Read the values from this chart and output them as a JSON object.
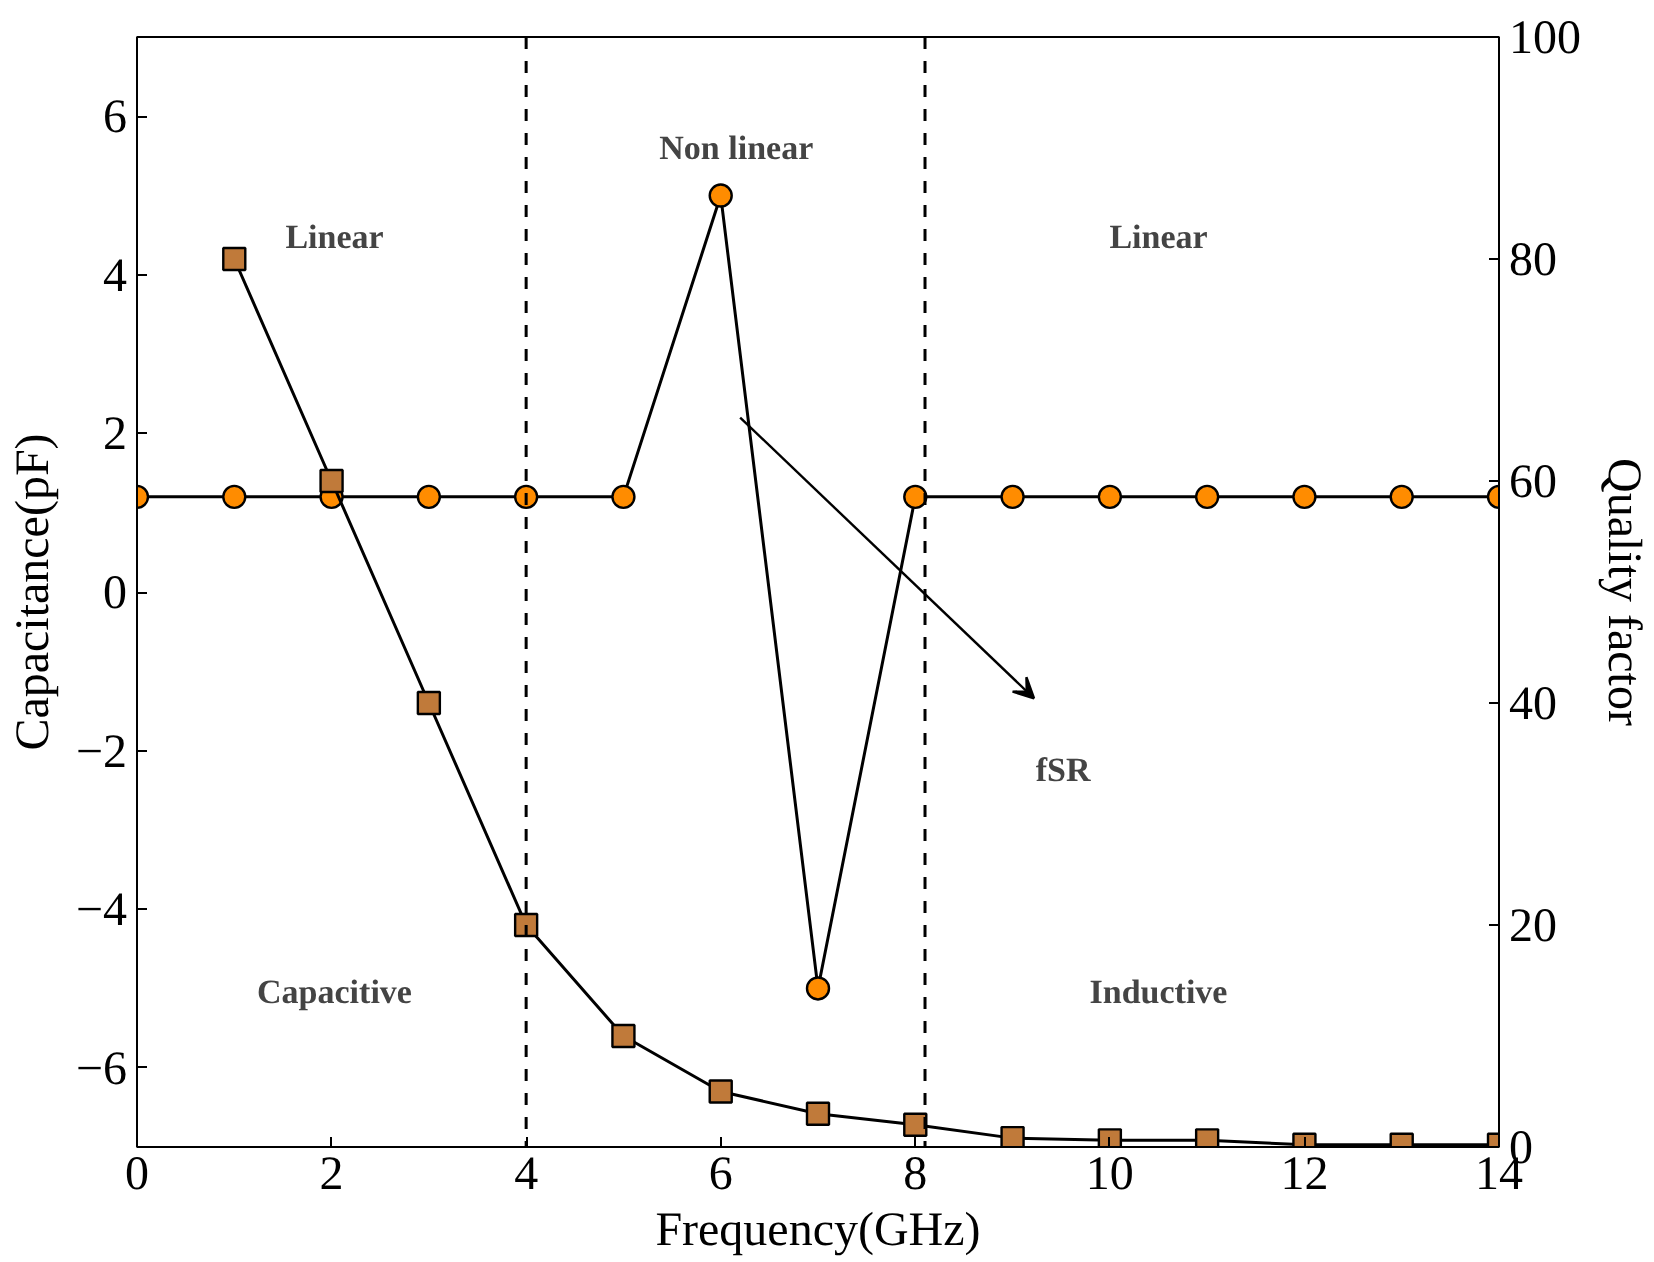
{
  "chart_data": {
    "type": "line",
    "xlabel": "Frequency(GHz)",
    "ylabel": "Capacitance(pF)",
    "y2label": "Quality factor",
    "xlim": [
      0,
      14
    ],
    "xticks": [
      0,
      2,
      4,
      6,
      8,
      10,
      12,
      14
    ],
    "ylim": [
      -7,
      7
    ],
    "yticks": [
      -6,
      -4,
      -2,
      0,
      2,
      4,
      6
    ],
    "y2lim": [
      0,
      100
    ],
    "y2ticks": [
      0,
      20,
      40,
      60,
      80,
      100
    ],
    "grid": false,
    "series": [
      {
        "color": "#ff8c00",
        "marker": "circle",
        "x": [
          0,
          1,
          2,
          3,
          4,
          5,
          6,
          7,
          8,
          9,
          10,
          11,
          12,
          13,
          14
        ],
        "values": [
          1.2,
          1.2,
          1.2,
          1.2,
          1.2,
          1.2,
          5.0,
          -5.0,
          1.2,
          1.2,
          1.2,
          1.2,
          1.2,
          1.2,
          1.2
        ]
      },
      {
        "color": "#c07a3a",
        "marker": "square",
        "axis": "y2",
        "x": [
          1,
          2,
          3,
          4,
          5,
          6,
          7,
          8,
          9,
          10,
          11,
          12,
          13,
          14
        ],
        "values": [
          80,
          60,
          40,
          20,
          10,
          5,
          3,
          2,
          0.8,
          0.6,
          0.6,
          0.2,
          0.2,
          0.2
        ]
      }
    ],
    "ref_lines": [
      {
        "axis": "x",
        "value": 4,
        "line_style": "dashed"
      },
      {
        "axis": "x",
        "value": 8.1,
        "line_style": "dashed"
      }
    ],
    "annotations": [
      "Linear",
      "Non linear",
      "Linear",
      "Capacitive",
      "Inductive",
      "fSR"
    ]
  }
}
